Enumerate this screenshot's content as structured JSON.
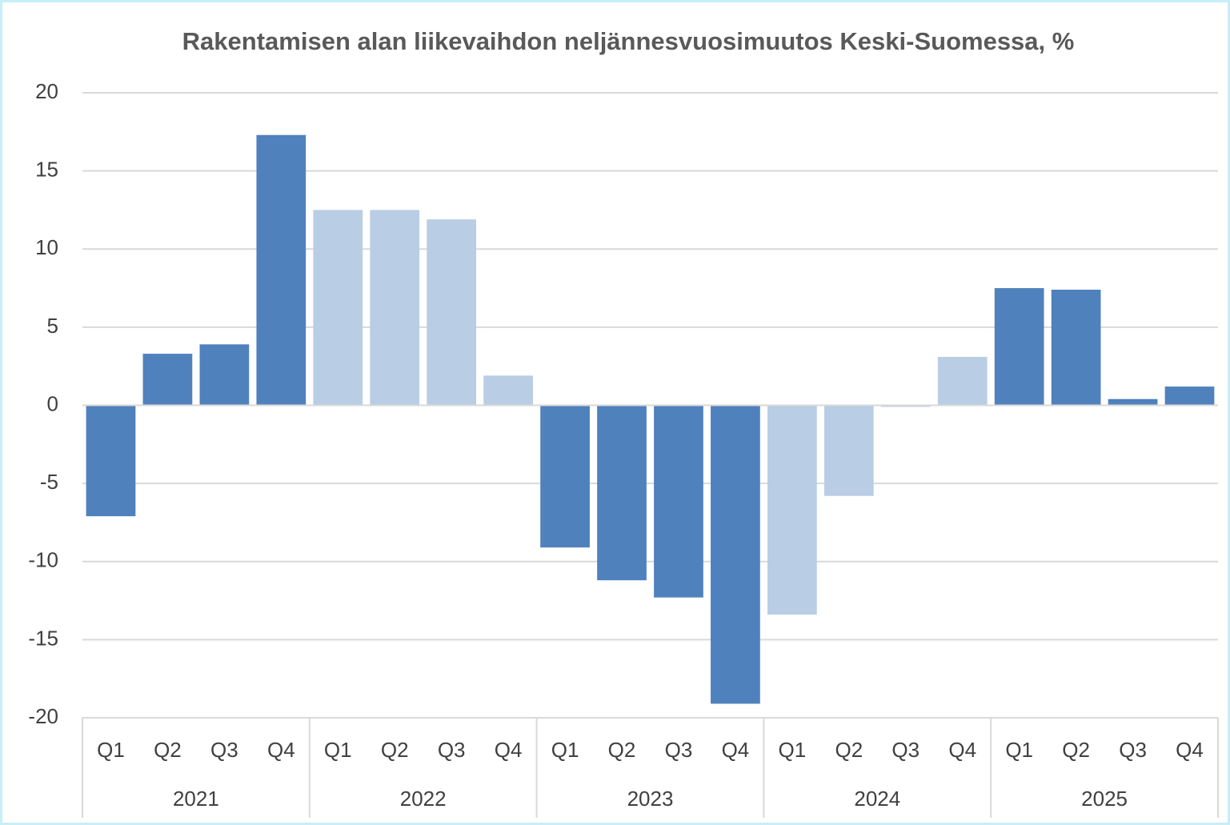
{
  "chart_data": {
    "type": "bar",
    "title": "Rakentamisen alan liikevaihdon neljännesvuosimuutos Keski-Suomessa, %",
    "categories": [
      "Q1",
      "Q2",
      "Q3",
      "Q4",
      "Q1",
      "Q2",
      "Q3",
      "Q4",
      "Q1",
      "Q2",
      "Q3",
      "Q4",
      "Q1",
      "Q2",
      "Q3",
      "Q4",
      "Q1",
      "Q2",
      "Q3",
      "Q4"
    ],
    "groups": [
      "2021",
      "2022",
      "2023",
      "2024",
      "2025"
    ],
    "values": [
      -7.1,
      3.3,
      3.9,
      17.3,
      12.5,
      12.5,
      11.9,
      1.9,
      -9.1,
      -11.2,
      -12.3,
      -19.1,
      -13.4,
      -5.8,
      -0.1,
      3.1,
      7.5,
      7.4,
      0.4,
      1.2
    ],
    "colors": [
      "#4f81bd",
      "#4f81bd",
      "#4f81bd",
      "#4f81bd",
      "#b9cde5",
      "#b9cde5",
      "#b9cde5",
      "#b9cde5",
      "#4f81bd",
      "#4f81bd",
      "#4f81bd",
      "#4f81bd",
      "#b9cde5",
      "#b9cde5",
      "#b9cde5",
      "#b9cde5",
      "#4f81bd",
      "#4f81bd",
      "#4f81bd",
      "#4f81bd"
    ],
    "ylim": [
      -20,
      20
    ],
    "yticks": [
      -20,
      -15,
      -10,
      -5,
      0,
      5,
      10,
      15,
      20
    ],
    "grid": true
  }
}
